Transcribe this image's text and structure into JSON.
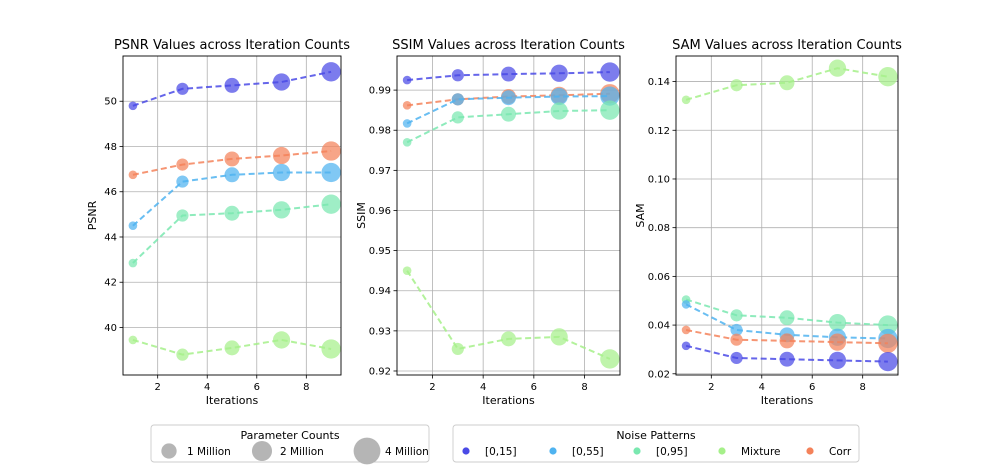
{
  "chart_data": [
    {
      "type": "scatter",
      "title": "PSNR Values across Iteration Counts",
      "xlabel": "Iterations",
      "ylabel": "PSNR",
      "xlim": [
        0.6,
        9.4
      ],
      "ylim": [
        37.9,
        52.0
      ],
      "xticks": [
        2,
        4,
        6,
        8
      ],
      "yticks": [
        40,
        42,
        44,
        46,
        48,
        50
      ],
      "yticklabels": [
        "40",
        "42",
        "44",
        "46",
        "48",
        "50"
      ],
      "x": [
        1,
        3,
        5,
        7,
        9
      ],
      "sizes_million": [
        0.7,
        1.4,
        2.1,
        2.8,
        3.5
      ],
      "grid": true,
      "series": [
        {
          "name": "[0,15]",
          "values": [
            49.8,
            50.55,
            50.7,
            50.85,
            51.3
          ]
        },
        {
          "name": "Corr",
          "values": [
            46.75,
            47.2,
            47.45,
            47.6,
            47.8
          ]
        },
        {
          "name": "[0,55]",
          "values": [
            44.5,
            46.45,
            46.75,
            46.85,
            46.85
          ]
        },
        {
          "name": "[0,95]",
          "values": [
            42.85,
            44.95,
            45.05,
            45.2,
            45.45
          ]
        },
        {
          "name": "Mixture",
          "values": [
            39.45,
            38.8,
            39.1,
            39.45,
            39.05
          ]
        }
      ]
    },
    {
      "type": "scatter",
      "title": "SSIM Values across Iteration Counts",
      "xlabel": "Iterations",
      "ylabel": "SSIM",
      "xlim": [
        0.6,
        9.4
      ],
      "ylim": [
        0.919,
        0.9985
      ],
      "xticks": [
        2,
        4,
        6,
        8
      ],
      "yticks": [
        0.92,
        0.93,
        0.94,
        0.95,
        0.96,
        0.97,
        0.98,
        0.99
      ],
      "yticklabels": [
        "0.92",
        "0.93",
        "0.94",
        "0.95",
        "0.96",
        "0.97",
        "0.98",
        "0.99"
      ],
      "x": [
        1,
        3,
        5,
        7,
        9
      ],
      "sizes_million": [
        0.7,
        1.4,
        2.1,
        2.8,
        3.5
      ],
      "grid": true,
      "series": [
        {
          "name": "[0,15]",
          "values": [
            0.9925,
            0.9937,
            0.994,
            0.9942,
            0.9945
          ]
        },
        {
          "name": "Corr",
          "values": [
            0.9862,
            0.9877,
            0.9884,
            0.9887,
            0.9891
          ]
        },
        {
          "name": "[0,55]",
          "values": [
            0.9817,
            0.9877,
            0.9881,
            0.9884,
            0.9885
          ]
        },
        {
          "name": "[0,95]",
          "values": [
            0.977,
            0.9832,
            0.984,
            0.9848,
            0.985
          ]
        },
        {
          "name": "Mixture",
          "values": [
            0.945,
            0.9255,
            0.928,
            0.9285,
            0.923
          ]
        }
      ]
    },
    {
      "type": "scatter",
      "title": "SAM Values across Iteration Counts",
      "xlabel": "Iterations",
      "ylabel": "SAM",
      "xlim": [
        0.6,
        9.4
      ],
      "ylim": [
        0.0195,
        0.1505
      ],
      "xticks": [
        2,
        4,
        6,
        8
      ],
      "yticks": [
        0.02,
        0.04,
        0.06,
        0.08,
        0.1,
        0.12,
        0.14
      ],
      "yticklabels": [
        "0.02",
        "0.04",
        "0.06",
        "0.08",
        "0.10",
        "0.12",
        "0.14"
      ],
      "x": [
        1,
        3,
        5,
        7,
        9
      ],
      "sizes_million": [
        0.7,
        1.4,
        2.1,
        2.8,
        3.5
      ],
      "grid": true,
      "series": [
        {
          "name": "Mixture",
          "values": [
            0.1325,
            0.1385,
            0.1395,
            0.1455,
            0.142
          ]
        },
        {
          "name": "[0,95]",
          "values": [
            0.0505,
            0.044,
            0.043,
            0.041,
            0.04
          ]
        },
        {
          "name": "[0,55]",
          "values": [
            0.0485,
            0.038,
            0.036,
            0.035,
            0.0345
          ]
        },
        {
          "name": "Corr",
          "values": [
            0.038,
            0.034,
            0.0335,
            0.033,
            0.0325
          ]
        },
        {
          "name": "[0,15]",
          "values": [
            0.0315,
            0.0265,
            0.026,
            0.0255,
            0.025
          ]
        }
      ]
    }
  ],
  "series_colors": {
    "[0,15]": "#4a4ae6",
    "[0,55]": "#4fb3f0",
    "[0,95]": "#7ae8b0",
    "Mixture": "#a6f08a",
    "Corr": "#f4825a"
  },
  "legends": {
    "size": {
      "title": "Parameter Counts",
      "items": [
        {
          "label": "1 Million",
          "size_million": 1
        },
        {
          "label": "2 Million",
          "size_million": 2
        },
        {
          "label": "4 Million",
          "size_million": 4
        }
      ]
    },
    "noise": {
      "title": "Noise Patterns",
      "items": [
        "[0,15]",
        "[0,55]",
        "[0,95]",
        "Mixture",
        "Corr"
      ]
    }
  }
}
